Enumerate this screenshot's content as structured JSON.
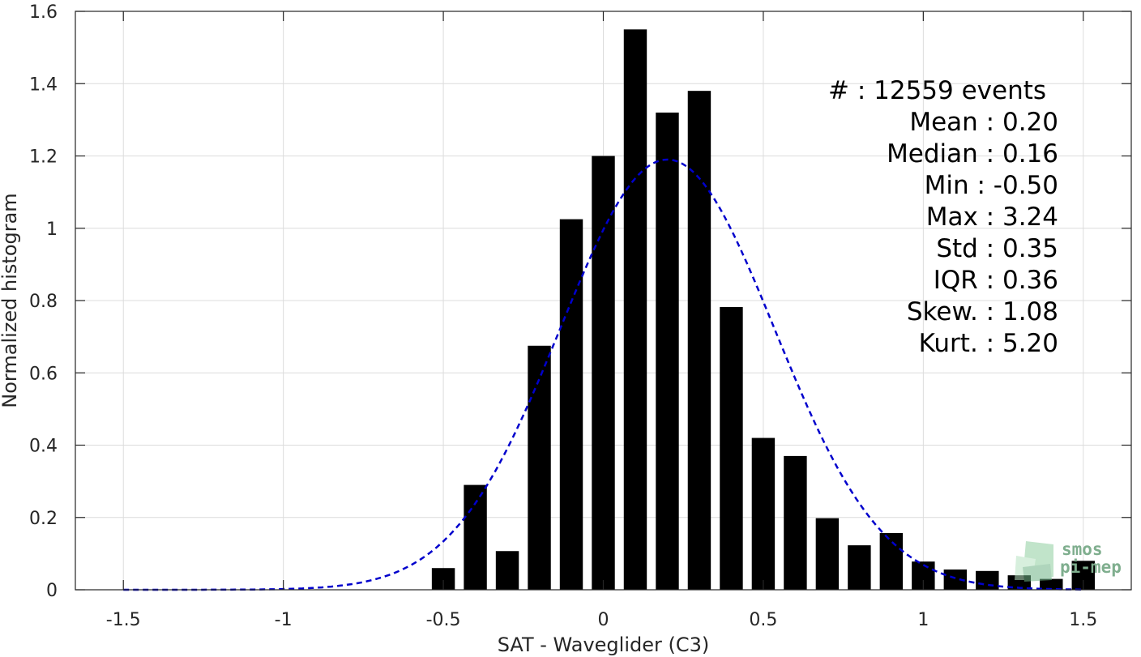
{
  "chart_data": {
    "type": "bar",
    "xlabel": "SAT - Waveglider (C3)",
    "ylabel": "Normalized histogram",
    "xlim": [
      -1.65,
      1.65
    ],
    "ylim": [
      0,
      1.6
    ],
    "xticks": [
      -1.5,
      -1,
      -0.5,
      0,
      0.5,
      1,
      1.5
    ],
    "xtick_labels": [
      "-1.5",
      "-1",
      "-0.5",
      "0",
      "0.5",
      "1",
      "1.5"
    ],
    "yticks": [
      0,
      0.2,
      0.4,
      0.6,
      0.8,
      1,
      1.2,
      1.4,
      1.6
    ],
    "ytick_labels": [
      "0",
      "0.2",
      "0.4",
      "0.6",
      "0.8",
      "1",
      "1.2",
      "1.4",
      "1.6"
    ],
    "grid": true,
    "bar_color": "#000000",
    "bin_width": 0.1,
    "bars": {
      "x": [
        -0.5,
        -0.4,
        -0.3,
        -0.2,
        -0.1,
        0.0,
        0.1,
        0.2,
        0.3,
        0.4,
        0.5,
        0.6,
        0.7,
        0.8,
        0.9,
        1.0,
        1.1,
        1.2,
        1.3,
        1.4,
        1.5
      ],
      "values": [
        0.06,
        0.29,
        0.107,
        0.675,
        1.025,
        1.2,
        1.55,
        1.32,
        1.38,
        0.782,
        0.42,
        0.37,
        0.198,
        0.123,
        0.157,
        0.078,
        0.056,
        0.052,
        0.04,
        0.03,
        0.08
      ]
    },
    "fit_curve": {
      "style": "dashed",
      "color": "#0000cc",
      "mean": 0.2,
      "std": 0.335,
      "peak": 1.19
    },
    "stats": [
      {
        "label": "#  : 12559 events"
      },
      {
        "label": "Mean : 0.20"
      },
      {
        "label": "Median : 0.16"
      },
      {
        "label": "Min : -0.50"
      },
      {
        "label": "Max : 3.24"
      },
      {
        "label": "Std : 0.35"
      },
      {
        "label": "IQR : 0.36"
      },
      {
        "label": "Skew. : 1.08"
      },
      {
        "label": "Kurt. : 5.20"
      }
    ]
  },
  "watermark": {
    "line1": "smos",
    "line2": "pi-mep",
    "color": "#7fae8e"
  }
}
